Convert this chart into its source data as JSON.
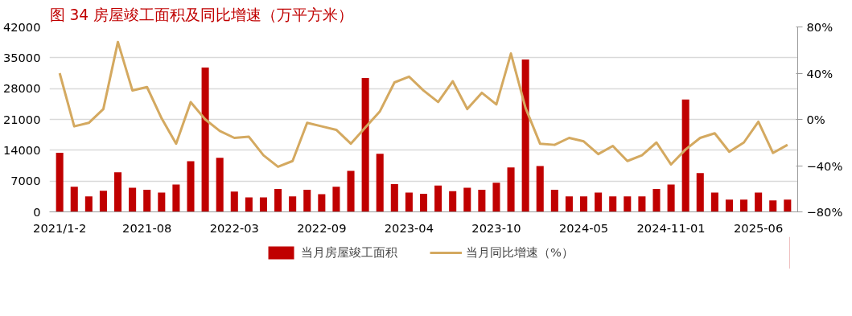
{
  "chart_data": {
    "type": "bar",
    "title": "图 34 房屋竣工面积及同比增速（万平方米）",
    "categories": [
      "2021/1-2",
      null,
      null,
      null,
      null,
      null,
      "2021-08",
      null,
      null,
      null,
      null,
      null,
      "2022-03",
      null,
      null,
      null,
      null,
      null,
      "2022-09",
      null,
      null,
      null,
      null,
      null,
      "2023-04",
      null,
      null,
      null,
      null,
      null,
      "2023-10",
      null,
      null,
      null,
      null,
      null,
      "2024-05",
      null,
      null,
      null,
      null,
      null,
      "2024-11-01",
      null,
      null,
      null,
      null,
      null,
      "2025-06",
      null,
      null
    ],
    "series": [
      {
        "name": "当月房屋竣工面积",
        "color": "#c00000",
        "values": [
          13400,
          5700,
          3500,
          4800,
          9000,
          5500,
          5000,
          4400,
          6200,
          11500,
          32800,
          12300,
          4600,
          3300,
          3300,
          5200,
          3500,
          5000,
          4000,
          5700,
          9300,
          30400,
          13200,
          6300,
          4400,
          4100,
          6000,
          4700,
          5500,
          5000,
          6600,
          10100,
          34600,
          10400,
          5000,
          3500,
          3500,
          4400,
          3500,
          3500,
          3500,
          5200,
          6200,
          25500,
          8800,
          4400,
          2800,
          2800,
          4400,
          2600,
          2800
        ]
      },
      {
        "name": "当月同比增速（%）",
        "type": "line",
        "axis": "y2",
        "color": "#d4a960",
        "values": [
          40,
          -6,
          -3,
          9,
          67,
          25,
          28,
          1,
          -21,
          15,
          0,
          -10,
          -16,
          -15,
          -31,
          -41,
          -36,
          -3,
          -6,
          -9,
          -21,
          -7,
          7,
          32,
          37,
          25,
          15,
          33,
          9,
          23,
          13,
          57,
          10,
          -21,
          -22,
          -16,
          -19,
          -30,
          -23,
          -36,
          -31,
          -20,
          -39,
          -26,
          -16,
          -12,
          -28,
          -20,
          -2,
          -29,
          -22
        ]
      }
    ],
    "ylim": [
      0,
      42000
    ],
    "yticks": [
      0,
      7000,
      14000,
      21000,
      28000,
      35000,
      42000
    ],
    "y2lim": [
      -80,
      80
    ],
    "y2ticks": [
      {
        "value": -80,
        "label": "−80%"
      },
      {
        "value": -40,
        "label": "−40%"
      },
      {
        "value": 0,
        "label": "0%"
      },
      {
        "value": 40,
        "label": "40%"
      },
      {
        "value": 80,
        "label": "80%"
      }
    ],
    "grid": "y",
    "legend": "bottom",
    "marker": "none",
    "line_style": "solid"
  }
}
